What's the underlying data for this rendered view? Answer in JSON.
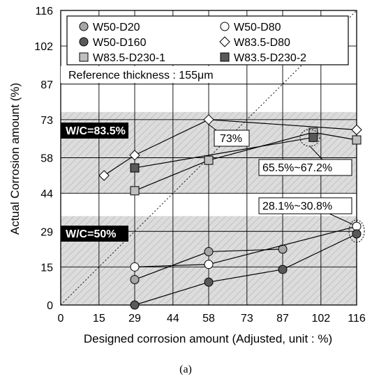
{
  "chart_data": {
    "type": "line",
    "panel_label": "(a)",
    "xlabel": "Designed corrosion amount (Adjusted, unit : %)",
    "ylabel": "Actual Corrosion amount (%)",
    "xlim": [
      0,
      116
    ],
    "ylim": [
      0,
      116
    ],
    "x_ticks": [
      "0",
      "15",
      "29",
      "44",
      "58",
      "73",
      "87",
      "102",
      "116"
    ],
    "y_ticks": [
      "0",
      "15",
      "29",
      "44",
      "58",
      "73",
      "87",
      "102",
      "116"
    ],
    "grid": true,
    "legend_position": "top",
    "reference_note": "Reference thickness : 155μm",
    "bands": [
      {
        "label": "W/C=83.5%",
        "y_range": [
          44,
          76
        ],
        "color": "#d9d9d9"
      },
      {
        "label": "W/C=50%",
        "y_range": [
          0,
          35
        ],
        "color": "#d9d9d9"
      }
    ],
    "reference_line": {
      "style": "dotted",
      "from": [
        0,
        0
      ],
      "to": [
        116,
        116
      ]
    },
    "series": [
      {
        "name": "W50-D20",
        "marker": "circle",
        "fill": "#a6a6a6",
        "points": [
          [
            29,
            10
          ],
          [
            58,
            21
          ],
          [
            87,
            22
          ]
        ]
      },
      {
        "name": "W50-D80",
        "marker": "circle",
        "fill": "#ffffff",
        "points": [
          [
            29,
            15
          ],
          [
            58,
            16
          ],
          [
            116,
            31
          ]
        ]
      },
      {
        "name": "W50-D160",
        "marker": "circle",
        "fill": "#595959",
        "points": [
          [
            29,
            0
          ],
          [
            58,
            9
          ],
          [
            87,
            14
          ],
          [
            116,
            28
          ]
        ]
      },
      {
        "name": "W83.5-D80",
        "marker": "diamond",
        "fill": "#ffffff",
        "points": [
          [
            17,
            51
          ],
          [
            29,
            59
          ],
          [
            58,
            73
          ],
          [
            116,
            69
          ]
        ]
      },
      {
        "name": "W83.5-D230-1",
        "marker": "square",
        "fill": "#bfbfbf",
        "points": [
          [
            29,
            45
          ],
          [
            58,
            57
          ],
          [
            99,
            68
          ],
          [
            116,
            65
          ]
        ]
      },
      {
        "name": "W83.5-D230-2",
        "marker": "square",
        "fill": "#595959",
        "points": [
          [
            29,
            54
          ],
          [
            99,
            66
          ]
        ]
      }
    ],
    "annotations": [
      {
        "text": "73%"
      },
      {
        "text": "65.5%~67.2%"
      },
      {
        "text": "28.1%~30.8%"
      }
    ]
  }
}
